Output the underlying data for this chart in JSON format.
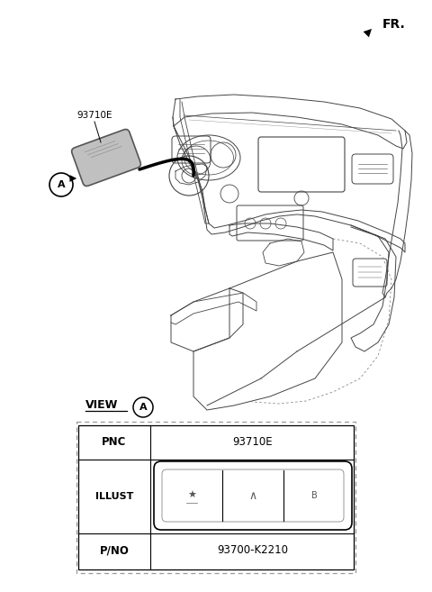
{
  "bg_color": "#ffffff",
  "line_color": "#444444",
  "light_line": "#888888",
  "fr_label": "FR.",
  "part_number_label": "93710E",
  "pno_label": "93700-K2210",
  "view_label": "VIEW",
  "view_circle_label": "A",
  "pnc_label": "PNC",
  "illust_label": "ILLUST",
  "pno_row_label": "P/NO"
}
